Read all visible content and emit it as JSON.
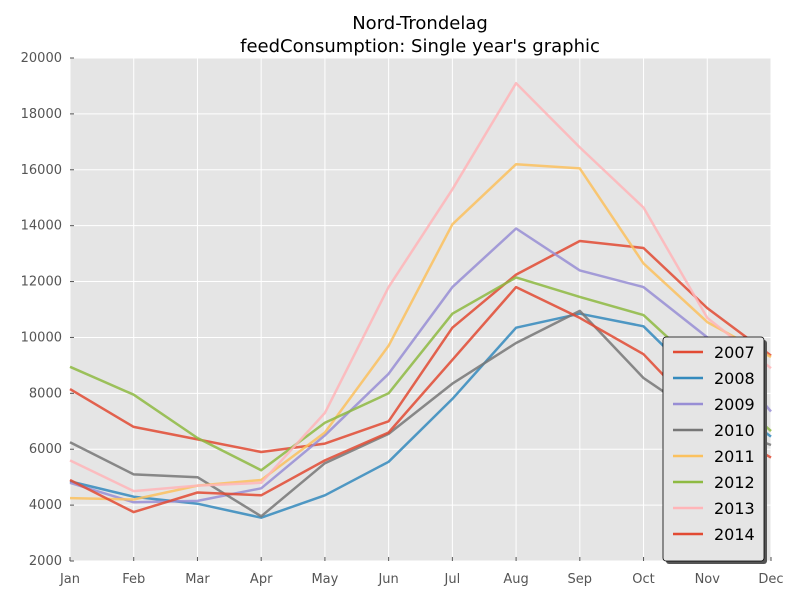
{
  "chart_data": {
    "type": "line",
    "title": "Nord-Trondelag",
    "subtitle": "feedConsumption: Single year's graphic",
    "xlabel": "",
    "ylabel": "",
    "categories": [
      "Jan",
      "Feb",
      "Mar",
      "Apr",
      "May",
      "Jun",
      "Jul",
      "Aug",
      "Sep",
      "Oct",
      "Nov",
      "Dec"
    ],
    "ylim": [
      2000,
      20000
    ],
    "yticks": [
      2000,
      4000,
      6000,
      8000,
      10000,
      12000,
      14000,
      16000,
      18000,
      20000
    ],
    "grid": true,
    "legend_position": "right",
    "background": "#e5e5e5",
    "series": [
      {
        "name": "2007",
        "color": "#e24a33",
        "values": [
          8150,
          6800,
          6350,
          5900,
          6200,
          7000,
          10350,
          12250,
          13450,
          13200,
          11050,
          9350
        ]
      },
      {
        "name": "2008",
        "color": "#348abd",
        "values": [
          4850,
          4300,
          4050,
          3550,
          4350,
          5550,
          7800,
          10350,
          10850,
          10400,
          8150,
          6450
        ]
      },
      {
        "name": "2009",
        "color": "#988ed5",
        "values": [
          4800,
          4100,
          4150,
          4600,
          6500,
          8700,
          11800,
          13900,
          12400,
          11800,
          10000,
          7350
        ]
      },
      {
        "name": "2010",
        "color": "#777777",
        "values": [
          6250,
          5100,
          5000,
          3600,
          5500,
          6550,
          8350,
          9800,
          10950,
          8550,
          7000,
          6150
        ]
      },
      {
        "name": "2011",
        "color": "#fbc15e",
        "values": [
          4250,
          4200,
          4700,
          4900,
          6600,
          9700,
          14050,
          16200,
          16050,
          12650,
          10550,
          9300
        ]
      },
      {
        "name": "2012",
        "color": "#8eba42",
        "values": [
          8950,
          7950,
          6400,
          5250,
          6950,
          8000,
          10850,
          12150,
          11450,
          10800,
          8700,
          6650
        ]
      },
      {
        "name": "2013",
        "color": "#ffb5b8",
        "values": [
          5600,
          4500,
          4700,
          4800,
          7300,
          11800,
          15300,
          19100,
          16800,
          14650,
          10700,
          8900
        ]
      },
      {
        "name": "2014",
        "color": "#e24a33",
        "values": [
          4900,
          3750,
          4450,
          4350,
          5600,
          6600,
          9200,
          11800,
          10700,
          9400,
          7000,
          5700
        ]
      }
    ]
  }
}
